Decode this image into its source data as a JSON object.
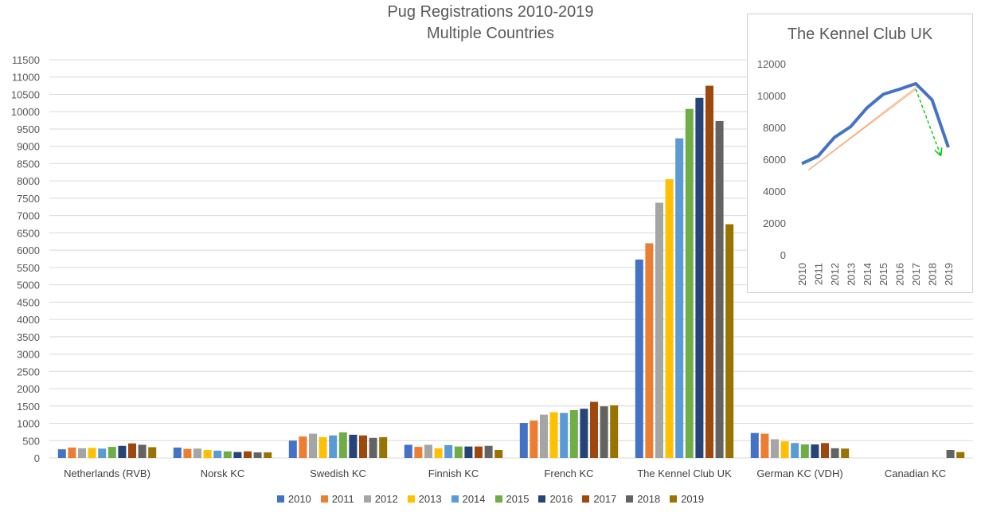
{
  "chart_data": [
    {
      "type": "bar",
      "title": "Pug Registrations 2010-2019",
      "subtitle": "Multiple Countries",
      "categories": [
        "Netherlands (RVB)",
        "Norsk KC",
        "Swedish KC",
        "Finnish KC",
        "French KC",
        "The Kennel Club UK",
        "German KC (VDH)",
        "Canadian KC"
      ],
      "ylim": [
        0,
        11500
      ],
      "yticks": [
        0,
        500,
        1000,
        1500,
        2000,
        2500,
        3000,
        3500,
        4000,
        4500,
        5000,
        5500,
        6000,
        6500,
        7000,
        7500,
        8000,
        8500,
        9000,
        9500,
        10000,
        10500,
        11000,
        11500
      ],
      "grid": true,
      "legend_position": "bottom",
      "series": [
        {
          "name": "2010",
          "color": "#4472c4",
          "values": [
            250,
            300,
            500,
            380,
            1010,
            5730,
            720,
            null
          ]
        },
        {
          "name": "2011",
          "color": "#ed7d31",
          "values": [
            300,
            260,
            620,
            320,
            1080,
            6200,
            700,
            null
          ]
        },
        {
          "name": "2012",
          "color": "#a5a5a5",
          "values": [
            280,
            270,
            700,
            380,
            1250,
            7370,
            540,
            null
          ]
        },
        {
          "name": "2013",
          "color": "#ffc000",
          "values": [
            290,
            230,
            600,
            280,
            1320,
            8050,
            480,
            null
          ]
        },
        {
          "name": "2014",
          "color": "#5b9bd5",
          "values": [
            270,
            210,
            650,
            370,
            1300,
            9230,
            430,
            null
          ]
        },
        {
          "name": "2015",
          "color": "#70ad47",
          "values": [
            320,
            190,
            740,
            330,
            1380,
            10080,
            390,
            null
          ]
        },
        {
          "name": "2016",
          "color": "#264478",
          "values": [
            350,
            170,
            670,
            330,
            1420,
            10400,
            390,
            null
          ]
        },
        {
          "name": "2017",
          "color": "#9e480e",
          "values": [
            420,
            190,
            650,
            330,
            1620,
            10750,
            430,
            null
          ]
        },
        {
          "name": "2018",
          "color": "#636363",
          "values": [
            380,
            160,
            580,
            350,
            1490,
            9730,
            280,
            230
          ]
        },
        {
          "name": "2019",
          "color": "#997300",
          "values": [
            310,
            160,
            600,
            230,
            1520,
            6750,
            270,
            170
          ]
        }
      ]
    },
    {
      "type": "line",
      "title": "The Kennel Club UK",
      "x": [
        "2010",
        "2011",
        "2012",
        "2013",
        "2014",
        "2015",
        "2016",
        "2017",
        "2018",
        "2019"
      ],
      "ylim": [
        0,
        12000
      ],
      "yticks": [
        0,
        2000,
        4000,
        6000,
        8000,
        10000,
        12000
      ],
      "grid": false,
      "series": [
        {
          "color": "#4472c4",
          "values": [
            5730,
            6200,
            7370,
            8050,
            9230,
            10080,
            10400,
            10750,
            9730,
            6750
          ]
        }
      ],
      "annotations": [
        {
          "kind": "trend-line",
          "color": "#f4b183",
          "from": [
            "2010",
            5300
          ],
          "to": [
            "2017",
            10400
          ]
        },
        {
          "kind": "arrow",
          "color": "#00cc00",
          "from": [
            "2017",
            10400
          ],
          "to": [
            "2019",
            6300
          ]
        }
      ]
    }
  ]
}
